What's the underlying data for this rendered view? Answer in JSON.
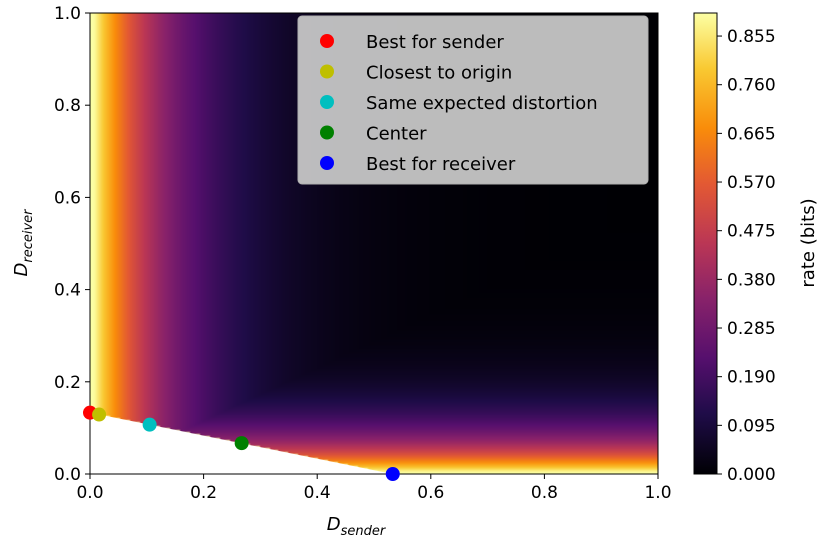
{
  "chart_data": {
    "type": "heatmap",
    "xlabel": {
      "main": "D",
      "sub": "sender"
    },
    "ylabel": {
      "main": "D",
      "sub": "receiver"
    },
    "xlim": [
      0.0,
      1.0
    ],
    "ylim": [
      0.0,
      1.0
    ],
    "xticks": [
      "0.0",
      "0.2",
      "0.4",
      "0.6",
      "0.8",
      "1.0"
    ],
    "yticks": [
      "0.0",
      "0.2",
      "0.4",
      "0.6",
      "0.8",
      "1.0"
    ],
    "colorbar": {
      "label": "rate (bits)",
      "colormap": "inferno",
      "range": [
        0.0,
        0.9
      ],
      "ticks": [
        "0.000",
        "0.095",
        "0.190",
        "0.285",
        "0.380",
        "0.475",
        "0.570",
        "0.665",
        "0.760",
        "0.855"
      ]
    },
    "feasible_boundary": {
      "from": [
        0.0,
        0.133
      ],
      "to": [
        0.533,
        0.0
      ]
    },
    "grid": false,
    "legend": "top-right",
    "series": [
      {
        "name": "Best for sender",
        "color": "#ff0000",
        "x": 0.0,
        "y": 0.133
      },
      {
        "name": "Closest to origin",
        "color": "#bfbf00",
        "x": 0.016,
        "y": 0.129
      },
      {
        "name": "Same expected distortion",
        "color": "#00bfbf",
        "x": 0.105,
        "y": 0.107
      },
      {
        "name": "Center",
        "color": "#008000",
        "x": 0.267,
        "y": 0.067
      },
      {
        "name": "Best for receiver",
        "color": "#0000ff",
        "x": 0.533,
        "y": 0.0
      }
    ]
  }
}
